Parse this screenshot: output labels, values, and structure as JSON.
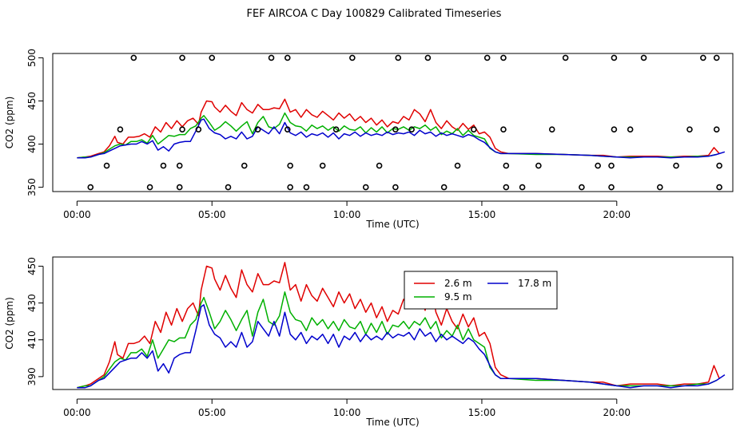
{
  "title": "FEF AIRCOA C  Day 100829  Calibrated Timeseries",
  "colors": {
    "s1": "#e00000",
    "s2": "#00b000",
    "s3": "#0000cc"
  },
  "chart_data": [
    {
      "type": "line",
      "panel": "top",
      "xlabel": "Time (UTC)",
      "ylabel": "CO2 (ppm)",
      "xlim": [
        -0.9,
        24.3
      ],
      "ylim": [
        345,
        505
      ],
      "xticks": [
        0,
        5,
        10,
        15,
        20
      ],
      "xtick_labels": [
        "00:00",
        "05:00",
        "10:00",
        "15:00",
        "20:00"
      ],
      "yticks": [
        350,
        400,
        450,
        500
      ],
      "ytick_labels": [
        "350",
        "400",
        "450",
        "500"
      ],
      "series_names": [
        "2.6 m",
        "9.5 m",
        "17.8 m"
      ],
      "scatter_markers": {
        "name": "calibration/flag markers",
        "points": [
          [
            0.5,
            350
          ],
          [
            1.1,
            375
          ],
          [
            1.6,
            417
          ],
          [
            2.1,
            500
          ],
          [
            2.7,
            350
          ],
          [
            3.2,
            375
          ],
          [
            3.8,
            350
          ],
          [
            3.8,
            375
          ],
          [
            3.9,
            500
          ],
          [
            3.9,
            417
          ],
          [
            4.5,
            417
          ],
          [
            5.0,
            500
          ],
          [
            5.6,
            350
          ],
          [
            6.2,
            375
          ],
          [
            6.7,
            417
          ],
          [
            7.2,
            500
          ],
          [
            7.8,
            500
          ],
          [
            7.8,
            417
          ],
          [
            7.9,
            375
          ],
          [
            7.9,
            350
          ],
          [
            8.5,
            350
          ],
          [
            9.1,
            375
          ],
          [
            9.6,
            417
          ],
          [
            10.2,
            500
          ],
          [
            10.7,
            350
          ],
          [
            11.2,
            375
          ],
          [
            11.8,
            350
          ],
          [
            11.8,
            417
          ],
          [
            11.9,
            500
          ],
          [
            12.4,
            417
          ],
          [
            13.0,
            500
          ],
          [
            13.6,
            350
          ],
          [
            14.1,
            375
          ],
          [
            14.7,
            417
          ],
          [
            15.2,
            500
          ],
          [
            15.8,
            500
          ],
          [
            15.8,
            417
          ],
          [
            15.9,
            375
          ],
          [
            15.9,
            350
          ],
          [
            16.5,
            350
          ],
          [
            17.1,
            375
          ],
          [
            17.6,
            417
          ],
          [
            18.1,
            500
          ],
          [
            18.7,
            350
          ],
          [
            19.3,
            375
          ],
          [
            19.8,
            350
          ],
          [
            19.8,
            375
          ],
          [
            19.9,
            417
          ],
          [
            19.9,
            500
          ],
          [
            20.5,
            417
          ],
          [
            21.0,
            500
          ],
          [
            21.6,
            350
          ],
          [
            22.2,
            375
          ],
          [
            22.7,
            417
          ],
          [
            23.2,
            500
          ],
          [
            23.7,
            500
          ],
          [
            23.7,
            417
          ],
          [
            23.8,
            375
          ],
          [
            23.8,
            350
          ]
        ]
      }
    },
    {
      "type": "line",
      "panel": "bottom",
      "xlabel": "Time (UTC)",
      "ylabel": "CO2 (ppm)",
      "xlim": [
        -0.9,
        24.3
      ],
      "ylim": [
        383,
        455
      ],
      "xticks": [
        0,
        5,
        10,
        15,
        20
      ],
      "xtick_labels": [
        "00:00",
        "05:00",
        "10:00",
        "15:00",
        "20:00"
      ],
      "yticks": [
        390,
        410,
        430,
        450
      ],
      "ytick_labels": [
        "390",
        "410",
        "430",
        "450"
      ],
      "legend": {
        "placement": "top-center",
        "entries": [
          "2.6 m",
          "17.8 m",
          "9.5 m"
        ]
      }
    }
  ],
  "series": [
    {
      "name": "2.6 m",
      "color": "#e00000",
      "points": [
        [
          0,
          384
        ],
        [
          0.3,
          385
        ],
        [
          0.5,
          386
        ],
        [
          0.8,
          389
        ],
        [
          1.0,
          391
        ],
        [
          1.2,
          398
        ],
        [
          1.4,
          409
        ],
        [
          1.5,
          402
        ],
        [
          1.7,
          400
        ],
        [
          1.9,
          408
        ],
        [
          2.1,
          408
        ],
        [
          2.3,
          409
        ],
        [
          2.5,
          412
        ],
        [
          2.7,
          408
        ],
        [
          2.9,
          420
        ],
        [
          3.1,
          414
        ],
        [
          3.3,
          425
        ],
        [
          3.5,
          418
        ],
        [
          3.7,
          427
        ],
        [
          3.9,
          420
        ],
        [
          4.1,
          427
        ],
        [
          4.3,
          430
        ],
        [
          4.5,
          423
        ],
        [
          4.6,
          437
        ],
        [
          4.8,
          450
        ],
        [
          5.0,
          449
        ],
        [
          5.1,
          443
        ],
        [
          5.3,
          437
        ],
        [
          5.5,
          445
        ],
        [
          5.7,
          438
        ],
        [
          5.9,
          433
        ],
        [
          6.1,
          448
        ],
        [
          6.3,
          440
        ],
        [
          6.5,
          436
        ],
        [
          6.7,
          446
        ],
        [
          6.9,
          440
        ],
        [
          7.1,
          440
        ],
        [
          7.3,
          442
        ],
        [
          7.5,
          441
        ],
        [
          7.7,
          452
        ],
        [
          7.9,
          437
        ],
        [
          8.1,
          440
        ],
        [
          8.3,
          431
        ],
        [
          8.5,
          440
        ],
        [
          8.7,
          434
        ],
        [
          8.9,
          431
        ],
        [
          9.1,
          438
        ],
        [
          9.3,
          433
        ],
        [
          9.5,
          428
        ],
        [
          9.7,
          436
        ],
        [
          9.9,
          430
        ],
        [
          10.1,
          435
        ],
        [
          10.3,
          427
        ],
        [
          10.5,
          432
        ],
        [
          10.7,
          425
        ],
        [
          10.9,
          430
        ],
        [
          11.1,
          422
        ],
        [
          11.3,
          428
        ],
        [
          11.5,
          420
        ],
        [
          11.7,
          426
        ],
        [
          11.9,
          424
        ],
        [
          12.1,
          432
        ],
        [
          12.3,
          428
        ],
        [
          12.5,
          440
        ],
        [
          12.7,
          435
        ],
        [
          12.9,
          426
        ],
        [
          13.1,
          440
        ],
        [
          13.3,
          425
        ],
        [
          13.5,
          418
        ],
        [
          13.7,
          427
        ],
        [
          13.9,
          420
        ],
        [
          14.1,
          416
        ],
        [
          14.3,
          424
        ],
        [
          14.5,
          417
        ],
        [
          14.7,
          422
        ],
        [
          14.9,
          412
        ],
        [
          15.1,
          414
        ],
        [
          15.3,
          408
        ],
        [
          15.5,
          395
        ],
        [
          15.7,
          391
        ],
        [
          16,
          389
        ],
        [
          17,
          389
        ],
        [
          18,
          388
        ],
        [
          19,
          387
        ],
        [
          19.5,
          387
        ],
        [
          20,
          385
        ],
        [
          20.5,
          386
        ],
        [
          21,
          386
        ],
        [
          21.5,
          386
        ],
        [
          22,
          385
        ],
        [
          22.5,
          386
        ],
        [
          23,
          386
        ],
        [
          23.4,
          387
        ],
        [
          23.6,
          396
        ],
        [
          23.8,
          389
        ]
      ]
    },
    {
      "name": "9.5 m",
      "color": "#00b000",
      "points": [
        [
          0,
          384
        ],
        [
          0.3,
          385
        ],
        [
          0.5,
          385
        ],
        [
          0.8,
          388
        ],
        [
          1.0,
          390
        ],
        [
          1.2,
          394
        ],
        [
          1.4,
          398
        ],
        [
          1.6,
          400
        ],
        [
          1.8,
          399
        ],
        [
          2.0,
          403
        ],
        [
          2.2,
          403
        ],
        [
          2.4,
          405
        ],
        [
          2.6,
          401
        ],
        [
          2.8,
          410
        ],
        [
          3.0,
          400
        ],
        [
          3.2,
          405
        ],
        [
          3.4,
          410
        ],
        [
          3.6,
          409
        ],
        [
          3.8,
          411
        ],
        [
          4.0,
          411
        ],
        [
          4.2,
          418
        ],
        [
          4.4,
          421
        ],
        [
          4.6,
          430
        ],
        [
          4.7,
          433
        ],
        [
          4.9,
          425
        ],
        [
          5.1,
          416
        ],
        [
          5.3,
          420
        ],
        [
          5.5,
          426
        ],
        [
          5.7,
          421
        ],
        [
          5.9,
          415
        ],
        [
          6.1,
          421
        ],
        [
          6.3,
          426
        ],
        [
          6.5,
          412
        ],
        [
          6.7,
          425
        ],
        [
          6.9,
          432
        ],
        [
          7.1,
          420
        ],
        [
          7.3,
          418
        ],
        [
          7.5,
          423
        ],
        [
          7.7,
          436
        ],
        [
          7.9,
          425
        ],
        [
          8.1,
          421
        ],
        [
          8.3,
          420
        ],
        [
          8.5,
          415
        ],
        [
          8.7,
          422
        ],
        [
          8.9,
          418
        ],
        [
          9.1,
          421
        ],
        [
          9.3,
          416
        ],
        [
          9.5,
          420
        ],
        [
          9.7,
          415
        ],
        [
          9.9,
          421
        ],
        [
          10.1,
          417
        ],
        [
          10.3,
          416
        ],
        [
          10.5,
          420
        ],
        [
          10.7,
          413
        ],
        [
          10.9,
          419
        ],
        [
          11.1,
          414
        ],
        [
          11.3,
          420
        ],
        [
          11.5,
          413
        ],
        [
          11.7,
          418
        ],
        [
          11.9,
          417
        ],
        [
          12.1,
          420
        ],
        [
          12.3,
          416
        ],
        [
          12.5,
          420
        ],
        [
          12.7,
          418
        ],
        [
          12.9,
          422
        ],
        [
          13.1,
          416
        ],
        [
          13.3,
          420
        ],
        [
          13.5,
          411
        ],
        [
          13.7,
          415
        ],
        [
          13.9,
          412
        ],
        [
          14.1,
          418
        ],
        [
          14.3,
          410
        ],
        [
          14.5,
          416
        ],
        [
          14.7,
          410
        ],
        [
          14.9,
          408
        ],
        [
          15.1,
          406
        ],
        [
          15.3,
          395
        ],
        [
          15.5,
          391
        ],
        [
          15.7,
          389
        ],
        [
          16,
          389
        ],
        [
          17,
          388
        ],
        [
          18,
          388
        ],
        [
          19,
          387
        ],
        [
          19.5,
          386
        ],
        [
          20,
          385
        ],
        [
          20.5,
          385
        ],
        [
          21,
          385
        ],
        [
          21.5,
          385
        ],
        [
          22,
          385
        ],
        [
          22.5,
          385
        ],
        [
          23,
          386
        ],
        [
          23.4,
          386
        ],
        [
          23.7,
          388
        ]
      ]
    },
    {
      "name": "17.8 m",
      "color": "#0000cc",
      "points": [
        [
          0,
          384
        ],
        [
          0.3,
          384
        ],
        [
          0.5,
          385
        ],
        [
          0.8,
          388
        ],
        [
          1.0,
          389
        ],
        [
          1.2,
          392
        ],
        [
          1.4,
          395
        ],
        [
          1.6,
          398
        ],
        [
          1.8,
          399
        ],
        [
          2.0,
          400
        ],
        [
          2.2,
          400
        ],
        [
          2.4,
          403
        ],
        [
          2.6,
          400
        ],
        [
          2.8,
          404
        ],
        [
          3.0,
          393
        ],
        [
          3.2,
          397
        ],
        [
          3.4,
          392
        ],
        [
          3.6,
          400
        ],
        [
          3.8,
          402
        ],
        [
          4.0,
          403
        ],
        [
          4.2,
          403
        ],
        [
          4.4,
          415
        ],
        [
          4.6,
          428
        ],
        [
          4.7,
          429
        ],
        [
          4.9,
          418
        ],
        [
          5.1,
          413
        ],
        [
          5.3,
          411
        ],
        [
          5.5,
          406
        ],
        [
          5.7,
          409
        ],
        [
          5.9,
          406
        ],
        [
          6.1,
          414
        ],
        [
          6.3,
          406
        ],
        [
          6.5,
          409
        ],
        [
          6.7,
          420
        ],
        [
          6.9,
          416
        ],
        [
          7.1,
          412
        ],
        [
          7.3,
          420
        ],
        [
          7.5,
          412
        ],
        [
          7.7,
          425
        ],
        [
          7.9,
          413
        ],
        [
          8.1,
          410
        ],
        [
          8.3,
          414
        ],
        [
          8.5,
          408
        ],
        [
          8.7,
          412
        ],
        [
          8.9,
          410
        ],
        [
          9.1,
          413
        ],
        [
          9.3,
          408
        ],
        [
          9.5,
          413
        ],
        [
          9.7,
          406
        ],
        [
          9.9,
          412
        ],
        [
          10.1,
          410
        ],
        [
          10.3,
          414
        ],
        [
          10.5,
          409
        ],
        [
          10.7,
          413
        ],
        [
          10.9,
          410
        ],
        [
          11.1,
          412
        ],
        [
          11.3,
          410
        ],
        [
          11.5,
          414
        ],
        [
          11.7,
          411
        ],
        [
          11.9,
          413
        ],
        [
          12.1,
          412
        ],
        [
          12.3,
          414
        ],
        [
          12.5,
          410
        ],
        [
          12.7,
          416
        ],
        [
          12.9,
          412
        ],
        [
          13.1,
          414
        ],
        [
          13.3,
          409
        ],
        [
          13.5,
          413
        ],
        [
          13.7,
          410
        ],
        [
          13.9,
          412
        ],
        [
          14.1,
          410
        ],
        [
          14.3,
          408
        ],
        [
          14.5,
          411
        ],
        [
          14.7,
          409
        ],
        [
          14.9,
          405
        ],
        [
          15.1,
          402
        ],
        [
          15.3,
          396
        ],
        [
          15.5,
          391
        ],
        [
          15.7,
          389
        ],
        [
          16,
          389
        ],
        [
          17,
          389
        ],
        [
          18,
          388
        ],
        [
          19,
          387
        ],
        [
          19.5,
          386
        ],
        [
          20,
          385
        ],
        [
          20.5,
          384
        ],
        [
          21,
          385
        ],
        [
          21.5,
          385
        ],
        [
          22,
          384
        ],
        [
          22.5,
          385
        ],
        [
          23,
          385
        ],
        [
          23.4,
          386
        ],
        [
          23.7,
          388
        ],
        [
          24,
          391
        ]
      ]
    }
  ]
}
